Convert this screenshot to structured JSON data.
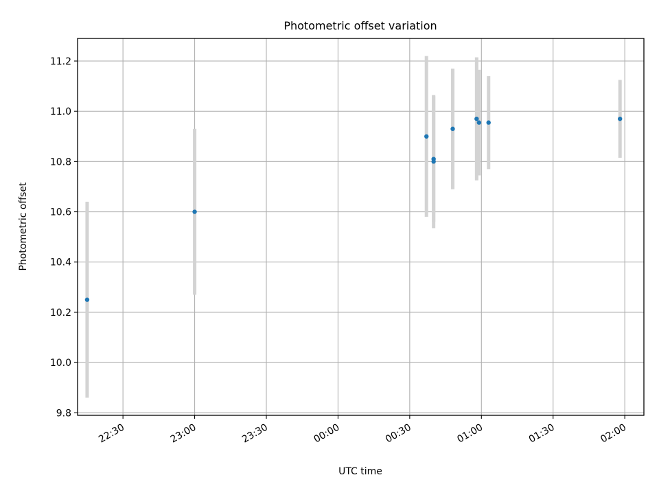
{
  "chart_data": {
    "type": "scatter",
    "title": "Photometric offset variation",
    "xlabel": "UTC time",
    "ylabel": "Photometric offset",
    "x_axis_kind": "time",
    "xlim": [
      "22:11",
      "02:08"
    ],
    "ylim": [
      9.79,
      11.29
    ],
    "x_ticks": [
      "22:30",
      "23:00",
      "23:30",
      "00:00",
      "00:30",
      "01:00",
      "01:30",
      "02:00"
    ],
    "y_ticks": [
      "9.8",
      "10.0",
      "10.2",
      "10.4",
      "10.6",
      "10.8",
      "11.0",
      "11.2"
    ],
    "grid": true,
    "legend": "none",
    "colors": {
      "points": "#1f77b4",
      "errorbars": "#d3d3d3",
      "grid": "#b0b0b0"
    },
    "points": [
      {
        "x": "22:15",
        "y": 10.25,
        "err": 0.39
      },
      {
        "x": "23:00",
        "y": 10.6,
        "err": 0.33
      },
      {
        "x": "00:37",
        "y": 10.9,
        "err": 0.32
      },
      {
        "x": "00:40",
        "y": 10.81,
        "err": 0.25
      },
      {
        "x": "00:40",
        "y": 10.8,
        "err": 0.265
      },
      {
        "x": "00:48",
        "y": 10.93,
        "err": 0.24
      },
      {
        "x": "00:58",
        "y": 10.97,
        "err": 0.245
      },
      {
        "x": "00:59",
        "y": 10.955,
        "err": 0.21
      },
      {
        "x": "01:03",
        "y": 10.955,
        "err": 0.185
      },
      {
        "x": "01:58",
        "y": 10.97,
        "err": 0.155
      }
    ]
  }
}
